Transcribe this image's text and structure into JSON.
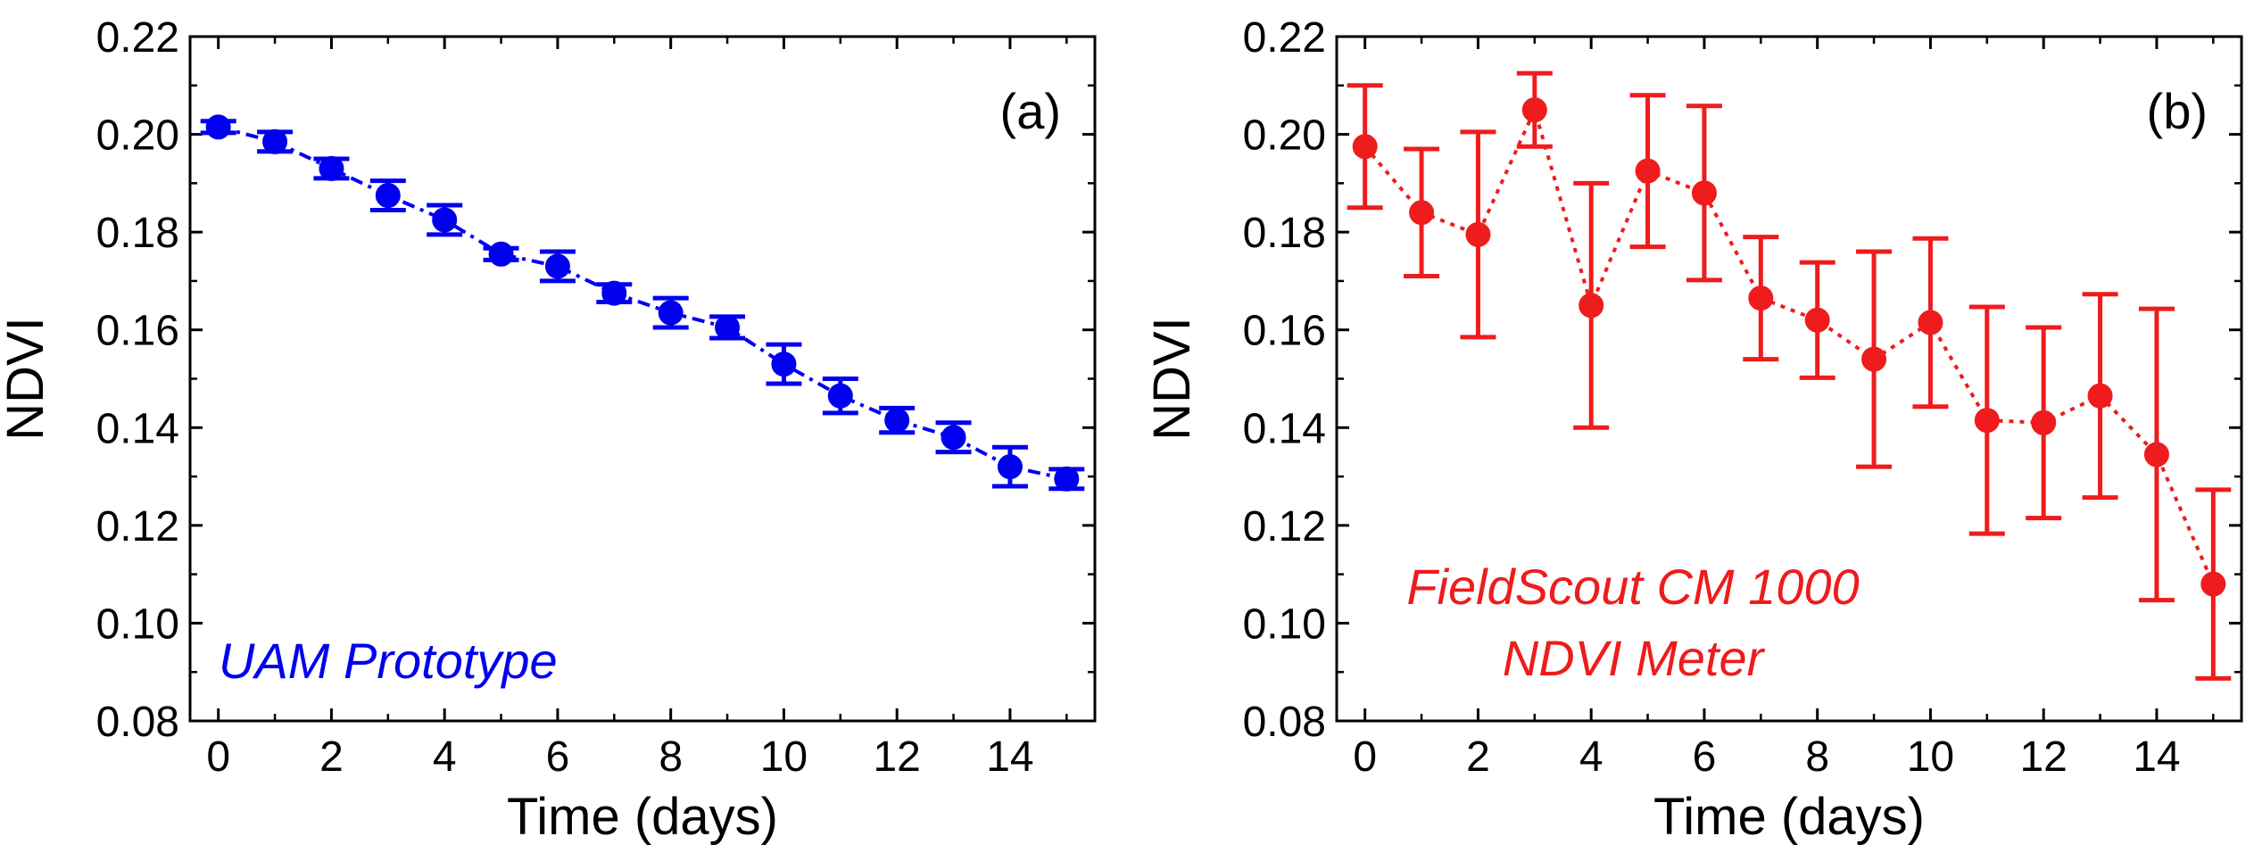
{
  "chart_data": [
    {
      "type": "line",
      "panel_label": "(a)",
      "xlabel": "Time (days)",
      "ylabel": "NDVI",
      "xlim": [
        -0.5,
        15.5
      ],
      "ylim": [
        0.08,
        0.22
      ],
      "xticks": [
        0,
        2,
        4,
        6,
        8,
        10,
        12,
        14
      ],
      "yticks": [
        0.08,
        0.1,
        0.12,
        0.14,
        0.16,
        0.18,
        0.2,
        0.22
      ],
      "ytick_labels": [
        "0.08",
        "0.10",
        "0.12",
        "0.14",
        "0.16",
        "0.18",
        "0.20",
        "0.22"
      ],
      "grid": false,
      "annotation": [
        "UAM Prototype"
      ],
      "series": [
        {
          "color": "#0000ee",
          "line_style": "dash-dot",
          "marker": "circle",
          "x": [
            0,
            1,
            2,
            3,
            4,
            5,
            6,
            7,
            8,
            9,
            10,
            11,
            12,
            13,
            14,
            15
          ],
          "y": [
            0.2015,
            0.1985,
            0.193,
            0.1875,
            0.1825,
            0.1755,
            0.173,
            0.1675,
            0.1635,
            0.1605,
            0.153,
            0.1465,
            0.1415,
            0.138,
            0.132,
            0.1295
          ],
          "error": [
            0.0012,
            0.002,
            0.002,
            0.003,
            0.003,
            0.0012,
            0.003,
            0.0018,
            0.003,
            0.0022,
            0.004,
            0.0035,
            0.0025,
            0.003,
            0.004,
            0.002
          ]
        }
      ]
    },
    {
      "type": "line",
      "panel_label": "(b)",
      "xlabel": "Time (days)",
      "ylabel": "NDVI",
      "xlim": [
        -0.5,
        15.5
      ],
      "ylim": [
        0.08,
        0.22
      ],
      "xticks": [
        0,
        2,
        4,
        6,
        8,
        10,
        12,
        14
      ],
      "yticks": [
        0.08,
        0.1,
        0.12,
        0.14,
        0.16,
        0.18,
        0.2,
        0.22
      ],
      "ytick_labels": [
        "0.08",
        "0.10",
        "0.12",
        "0.14",
        "0.16",
        "0.18",
        "0.20",
        "0.22"
      ],
      "grid": false,
      "annotation": [
        "FieldScout CM 1000",
        "NDVI Meter"
      ],
      "series": [
        {
          "color": "#ee1c1c",
          "line_style": "dotted",
          "marker": "circle",
          "x": [
            0,
            1,
            2,
            3,
            4,
            5,
            6,
            7,
            8,
            9,
            10,
            11,
            12,
            13,
            14,
            15
          ],
          "y": [
            0.1975,
            0.184,
            0.1795,
            0.205,
            0.165,
            0.1925,
            0.188,
            0.1665,
            0.162,
            0.154,
            0.1615,
            0.1415,
            0.141,
            0.1465,
            0.1345,
            0.108
          ],
          "error": [
            0.0125,
            0.013,
            0.021,
            0.0075,
            0.025,
            0.0155,
            0.0178,
            0.0125,
            0.0118,
            0.022,
            0.0172,
            0.0232,
            0.0195,
            0.0208,
            0.0298,
            0.0193
          ]
        }
      ]
    }
  ]
}
